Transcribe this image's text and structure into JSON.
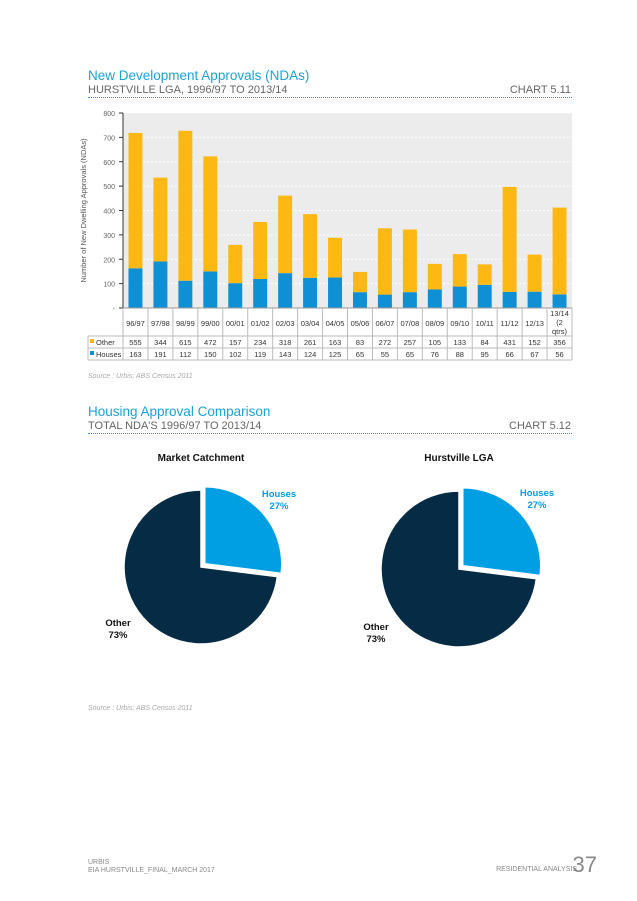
{
  "section1": {
    "title": "New Development Approvals (NDAs)",
    "subtitle": "HURSTVILLE LGA, 1996/97 TO 2013/14",
    "chart_no": "CHART 5.11",
    "source": "Source : Urbis; ABS Census 2011"
  },
  "section2": {
    "title": "Housing Approval Comparison",
    "subtitle": "TOTAL NDA'S 1996/97 TO 2013/14",
    "chart_no": "CHART 5.12",
    "source": "Source : Urbis; ABS Census 2011"
  },
  "footer": {
    "org": "URBIS",
    "doc": "EIA HURSTVILLE_FINAL_MARCH 2017",
    "section": "RESIDENTIAL ANALYSIS",
    "page": "37"
  },
  "colors": {
    "other": "#fdb813",
    "houses": "#0f8fd4",
    "pie_houses": "#009fe3",
    "pie_other": "#062c45"
  },
  "chart_data": [
    {
      "type": "bar",
      "stacked": true,
      "ylabel": "Number of New Dwelling Approvals (NDAs)",
      "ylim": [
        0,
        800
      ],
      "yticks": [
        "-",
        "100",
        "200",
        "300",
        "400",
        "500",
        "600",
        "700",
        "800"
      ],
      "categories": [
        "96/97",
        "97/98",
        "98/99",
        "99/00",
        "00/01",
        "01/02",
        "02/03",
        "03/04",
        "04/05",
        "05/06",
        "06/07",
        "07/08",
        "08/09",
        "09/10",
        "10/11",
        "11/12",
        "12/13",
        "13/14 (2 qtrs)"
      ],
      "series": [
        {
          "name": "Houses",
          "values": [
            163,
            191,
            112,
            150,
            102,
            119,
            143,
            124,
            125,
            65,
            55,
            65,
            76,
            88,
            95,
            66,
            67,
            56
          ]
        },
        {
          "name": "Other",
          "values": [
            555,
            344,
            615,
            472,
            157,
            234,
            318,
            261,
            163,
            83,
            272,
            257,
            105,
            133,
            84,
            431,
            152,
            356
          ]
        }
      ],
      "data_table": true
    },
    {
      "type": "pie",
      "title": "Market Catchment",
      "slices": [
        {
          "label": "Houses",
          "value": 27,
          "text": "27%"
        },
        {
          "label": "Other",
          "value": 73,
          "text": "73%"
        }
      ]
    },
    {
      "type": "pie",
      "title": "Hurstville LGA",
      "slices": [
        {
          "label": "Houses",
          "value": 27,
          "text": "27%"
        },
        {
          "label": "Other",
          "value": 73,
          "text": "73%"
        }
      ]
    }
  ]
}
